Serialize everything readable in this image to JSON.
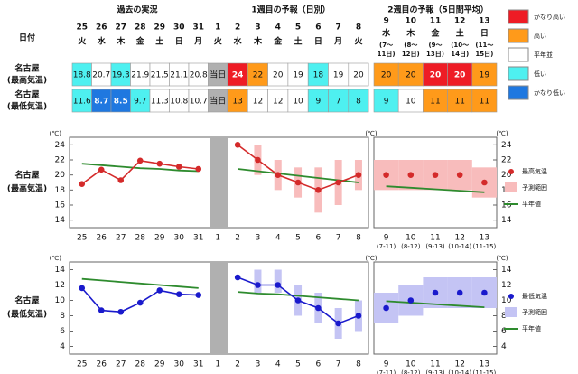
{
  "headings": [
    "過去の実況",
    "1週目の予報（日別）",
    "2週目の予報（5日間平均）"
  ],
  "date_label": "日付",
  "weekdays": [
    "火",
    "水",
    "木",
    "金",
    "土",
    "日",
    "月",
    "火",
    "水",
    "木",
    "金",
    "土",
    "日",
    "月",
    "火",
    "水",
    "木",
    "金",
    "土",
    "日"
  ],
  "periods": [
    null,
    null,
    null,
    null,
    null,
    null,
    null,
    null,
    null,
    null,
    null,
    null,
    null,
    null,
    null,
    [
      "(7～",
      "11日)"
    ],
    [
      "(8～",
      "12日)"
    ],
    [
      "(9～",
      "13日)"
    ],
    [
      "(10～",
      "14日)"
    ],
    [
      "(11～",
      "15日)"
    ]
  ],
  "legend": [
    {
      "label": "かなり高い",
      "color": "#ee1c25"
    },
    {
      "label": "高い",
      "color": "#ff9a1a"
    },
    {
      "label": "平年並",
      "color": "#ffffff"
    },
    {
      "label": "低い",
      "color": "#4ef0f0"
    },
    {
      "label": "かなり低い",
      "color": "#1f78e0"
    }
  ],
  "table": {
    "rows": [
      {
        "label": [
          "名古屋",
          "(最高気温)"
        ],
        "cells": [
          18.8,
          20.7,
          19.3,
          21.9,
          21.5,
          21.1,
          20.8,
          "当日",
          24,
          22,
          20,
          19,
          18,
          19,
          20,
          20,
          20,
          20,
          20,
          19
        ],
        "colors": [
          "#4ef0f0",
          "#ffffff",
          "#4ef0f0",
          "#ffffff",
          "#ffffff",
          "#ffffff",
          "#ffffff",
          "#b0b0b0",
          "#ee1c25",
          "#ff9a1a",
          "#ffffff",
          "#ffffff",
          "#4ef0f0",
          "#ffffff",
          "#ffffff",
          "#ff9a1a",
          "#ff9a1a",
          "#ee1c25",
          "#ee1c25",
          "#ff9a1a"
        ]
      },
      {
        "label": [
          "名古屋",
          "(最低気温)"
        ],
        "cells": [
          11.6,
          8.7,
          8.5,
          9.7,
          11.3,
          10.8,
          10.7,
          "当日",
          13,
          12,
          12,
          10,
          9,
          7,
          8,
          9,
          10,
          11,
          11,
          11
        ],
        "colors": [
          "#4ef0f0",
          "#1f78e0",
          "#1f78e0",
          "#4ef0f0",
          "#ffffff",
          "#ffffff",
          "#ffffff",
          "#b0b0b0",
          "#ff9a1a",
          "#ffffff",
          "#ffffff",
          "#ffffff",
          "#4ef0f0",
          "#4ef0f0",
          "#4ef0f0",
          "#4ef0f0",
          "#ffffff",
          "#ff9a1a",
          "#ff9a1a",
          "#ff9a1a"
        ]
      }
    ]
  },
  "chart_data": [
    {
      "type": "line",
      "title": [
        "名古屋",
        "(最高気温)"
      ],
      "y_unit": "(℃)",
      "categories": [
        "25",
        "26",
        "27",
        "28",
        "29",
        "30",
        "31",
        "1",
        "2",
        "3",
        "4",
        "5",
        "6",
        "7",
        "8",
        "9",
        "10",
        "11",
        "12",
        "13"
      ],
      "x_sublabels": [
        null,
        null,
        null,
        null,
        null,
        null,
        null,
        null,
        null,
        null,
        null,
        null,
        null,
        null,
        null,
        "(7-11)",
        "(8-12)",
        "(9-13)",
        "(10-14)",
        "(11-15)"
      ],
      "ylim": [
        13,
        25
      ],
      "yticks": [
        14,
        16,
        18,
        20,
        22,
        24
      ],
      "grid": false,
      "legend": "right",
      "series": [
        {
          "name": "最高気温",
          "color": "#d42a2a",
          "values": [
            18.8,
            20.7,
            19.3,
            21.9,
            21.5,
            21.1,
            20.8,
            null,
            24,
            22,
            20,
            19,
            18,
            19,
            20,
            20,
            20,
            20,
            20,
            19
          ]
        }
      ],
      "range": {
        "name": "予測範囲",
        "color": "#f8bcbc",
        "low": [
          null,
          null,
          null,
          null,
          null,
          null,
          null,
          null,
          null,
          20,
          18,
          17,
          15,
          16,
          18,
          18,
          18,
          18,
          18,
          17
        ],
        "high": [
          null,
          null,
          null,
          null,
          null,
          null,
          null,
          null,
          null,
          24,
          22,
          21,
          21,
          22,
          22,
          22,
          22,
          22,
          22,
          21
        ]
      },
      "normal": {
        "name": "平年値",
        "color": "#2e8b2e",
        "values": [
          21.5,
          21.3,
          21.1,
          20.9,
          20.8,
          20.6,
          20.5,
          null,
          20.8,
          20.5,
          20.2,
          19.9,
          19.6,
          19.3,
          19.0,
          18.5,
          18.3,
          18.1,
          17.9,
          17.7
        ]
      }
    },
    {
      "type": "line",
      "title": [
        "名古屋",
        "(最低気温)"
      ],
      "y_unit": "(℃)",
      "categories": [
        "25",
        "26",
        "27",
        "28",
        "29",
        "30",
        "31",
        "1",
        "2",
        "3",
        "4",
        "5",
        "6",
        "7",
        "8",
        "9",
        "10",
        "11",
        "12",
        "13"
      ],
      "x_sublabels": [
        null,
        null,
        null,
        null,
        null,
        null,
        null,
        null,
        null,
        null,
        null,
        null,
        null,
        null,
        null,
        "(7-11)",
        "(8-12)",
        "(9-13)",
        "(10-14)",
        "(11-15)"
      ],
      "ylim": [
        3,
        15
      ],
      "yticks": [
        4,
        6,
        8,
        10,
        12,
        14
      ],
      "grid": false,
      "legend": "right",
      "series": [
        {
          "name": "最低気温",
          "color": "#1a1acc",
          "values": [
            11.6,
            8.7,
            8.5,
            9.7,
            11.3,
            10.8,
            10.7,
            null,
            13,
            12,
            12,
            10,
            9,
            7,
            8,
            9,
            10,
            11,
            11,
            11
          ]
        }
      ],
      "range": {
        "name": "予測範囲",
        "color": "#c4c4f4",
        "low": [
          null,
          null,
          null,
          null,
          null,
          null,
          null,
          null,
          null,
          11,
          11,
          8,
          7,
          5,
          6,
          7,
          8,
          9,
          9,
          9
        ],
        "high": [
          null,
          null,
          null,
          null,
          null,
          null,
          null,
          null,
          null,
          14,
          14,
          12,
          11,
          9,
          10,
          11,
          12,
          13,
          13,
          13
        ]
      },
      "normal": {
        "name": "平年値",
        "color": "#2e8b2e",
        "values": [
          12.8,
          12.6,
          12.4,
          12.2,
          12.0,
          11.8,
          11.6,
          null,
          11.1,
          10.9,
          10.8,
          10.6,
          10.4,
          10.2,
          10.0,
          9.9,
          9.7,
          9.5,
          9.3,
          9.1
        ]
      }
    }
  ]
}
